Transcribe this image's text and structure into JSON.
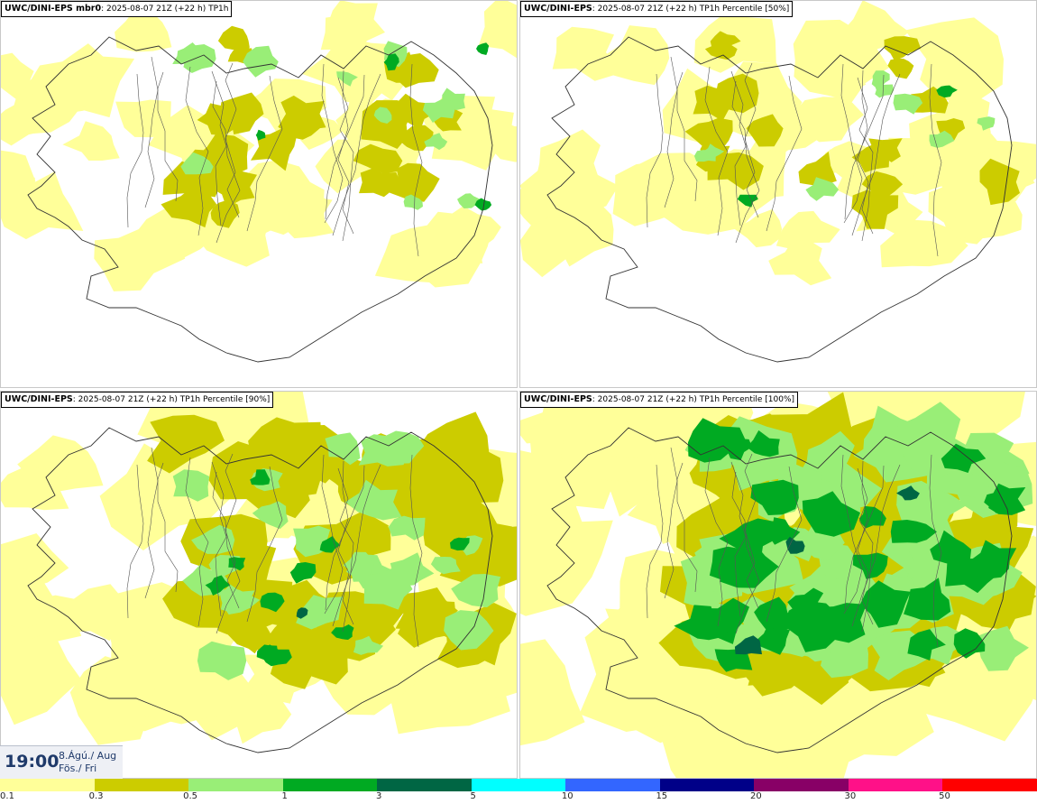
{
  "panels": [
    {
      "model": "UWC/DINI-EPS",
      "member": " mbr0",
      "run": ": 2025-08-07 21Z (+22 h)",
      "field": "TP1h",
      "intensity": 0
    },
    {
      "model": "UWC/DINI-EPS",
      "member": "",
      "run": ": 2025-08-07 21Z (+22 h)",
      "field": "TP1h Percentile [50%]",
      "intensity": 1
    },
    {
      "model": "UWC/DINI-EPS",
      "member": "",
      "run": ": 2025-08-07 21Z (+22 h)",
      "field": "TP1h Percentile [90%]",
      "intensity": 2
    },
    {
      "model": "UWC/DINI-EPS",
      "member": "",
      "run": ": 2025-08-07 21Z (+22 h)",
      "field": "TP1h Percentile [100%]",
      "intensity": 3
    }
  ],
  "time": {
    "hour": "19:00",
    "date_line1": "8.Ágú./ Aug",
    "date_line2": "Fös./ Fri"
  },
  "colorbar": {
    "colors": [
      "#ffff99",
      "#cccc00",
      "#99ee77",
      "#00aa22",
      "#006644",
      "#00ffff",
      "#3366ff",
      "#000088",
      "#880066",
      "#ff1188",
      "#ff0000"
    ],
    "labels": [
      "0.1",
      "0.3",
      "0.5",
      "1",
      "3",
      "5",
      "10",
      "15",
      "20",
      "30",
      "50"
    ]
  }
}
